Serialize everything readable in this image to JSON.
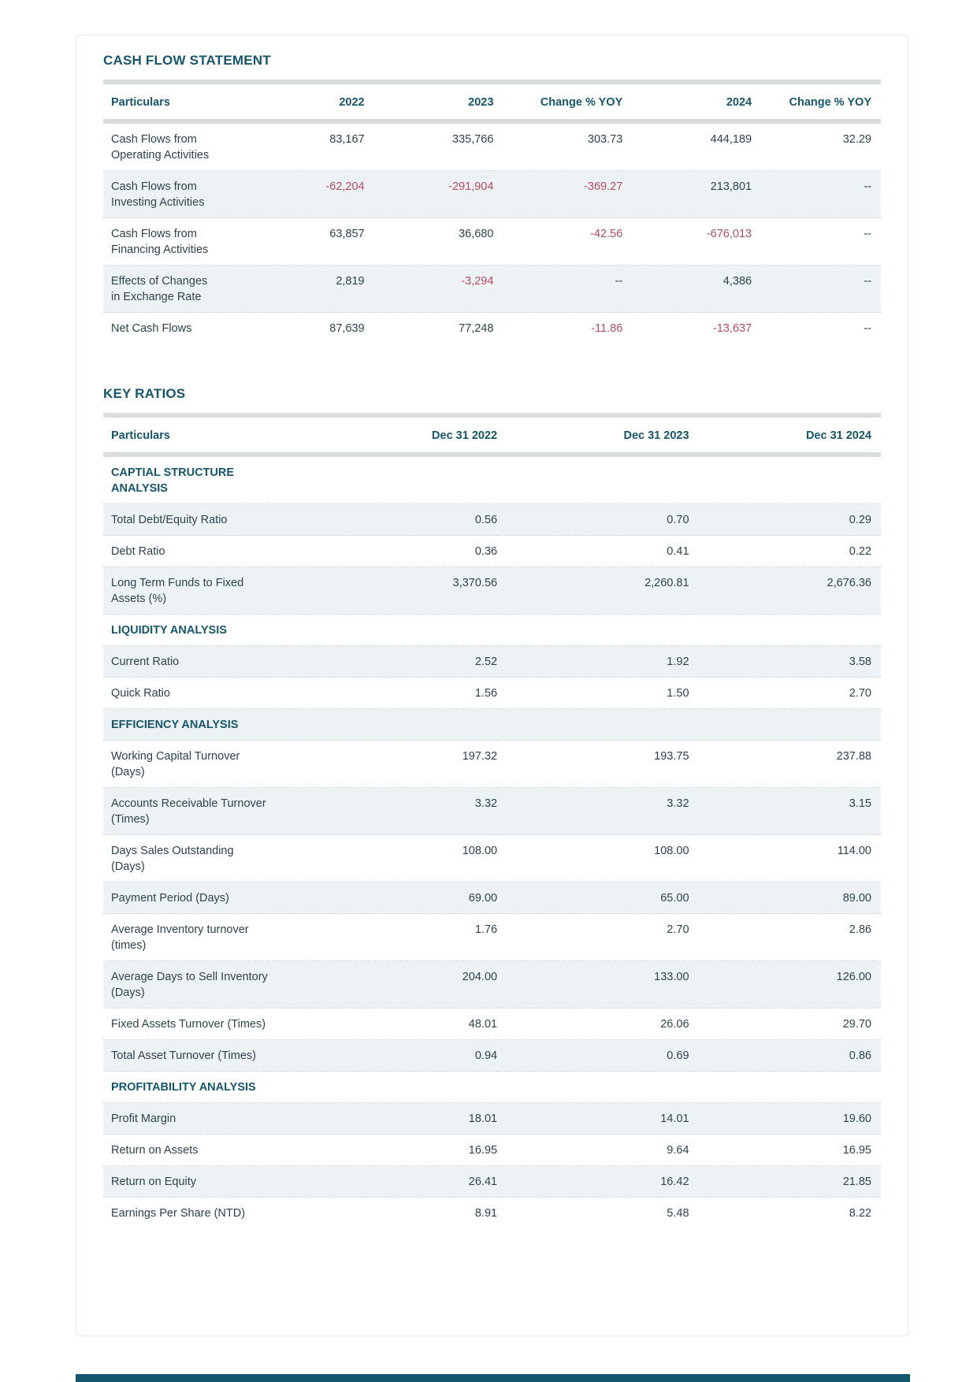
{
  "colors": {
    "accent": "#15566f",
    "text": "#2c434f",
    "negative": "#b64a5f",
    "row_shade": "#edf2f5",
    "header_bar": "#d9dddd"
  },
  "cash_flow_statement": {
    "title": "CASH FLOW STATEMENT",
    "columns": [
      "Particulars",
      "2022",
      "2023",
      "Change % YOY",
      "2024",
      "Change % YOY"
    ],
    "rows": [
      {
        "label": "Cash Flows from\nOperating Activities",
        "values": [
          "83,167",
          "335,766",
          "303.73",
          "444,189",
          "32.29"
        ]
      },
      {
        "label": "Cash Flows from\nInvesting Activities",
        "values": [
          "-62,204",
          "-291,904",
          "-369.27",
          "213,801",
          "--"
        ]
      },
      {
        "label": "Cash Flows from\nFinancing Activities",
        "values": [
          "63,857",
          "36,680",
          "-42.56",
          "-676,013",
          "--"
        ]
      },
      {
        "label": "Effects of Changes\nin Exchange Rate",
        "values": [
          "2,819",
          "-3,294",
          "--",
          "4,386",
          "--"
        ]
      },
      {
        "label": "Net Cash Flows",
        "values": [
          "87,639",
          "77,248",
          "-11.86",
          "-13,637",
          "--"
        ]
      }
    ]
  },
  "key_ratios": {
    "title": "KEY RATIOS",
    "columns": [
      "Particulars",
      "Dec 31 2022",
      "Dec 31 2023",
      "Dec 31 2024"
    ],
    "rows": [
      {
        "section": "CAPTIAL STRUCTURE\nANALYSIS"
      },
      {
        "label": "Total Debt/Equity Ratio",
        "values": [
          "0.56",
          "0.70",
          "0.29"
        ]
      },
      {
        "label": "Debt Ratio",
        "values": [
          "0.36",
          "0.41",
          "0.22"
        ]
      },
      {
        "label": "Long Term Funds to Fixed\nAssets (%)",
        "values": [
          "3,370.56",
          "2,260.81",
          "2,676.36"
        ]
      },
      {
        "section": "LIQUIDITY ANALYSIS"
      },
      {
        "label": "Current Ratio",
        "values": [
          "2.52",
          "1.92",
          "3.58"
        ]
      },
      {
        "label": "Quick Ratio",
        "values": [
          "1.56",
          "1.50",
          "2.70"
        ]
      },
      {
        "section": "EFFICIENCY ANALYSIS"
      },
      {
        "label": "Working Capital Turnover\n(Days)",
        "values": [
          "197.32",
          "193.75",
          "237.88"
        ]
      },
      {
        "label": "Accounts Receivable Turnover\n(Times)",
        "values": [
          "3.32",
          "3.32",
          "3.15"
        ]
      },
      {
        "label": "Days Sales Outstanding\n(Days)",
        "values": [
          "108.00",
          "108.00",
          "114.00"
        ]
      },
      {
        "label": "Payment Period (Days)",
        "values": [
          "69.00",
          "65.00",
          "89.00"
        ]
      },
      {
        "label": "Average Inventory turnover\n(times)",
        "values": [
          "1.76",
          "2.70",
          "2.86"
        ]
      },
      {
        "label": "Average Days to Sell Inventory\n(Days)",
        "values": [
          "204.00",
          "133.00",
          "126.00"
        ]
      },
      {
        "label": "Fixed Assets Turnover (Times)",
        "values": [
          "48.01",
          "26.06",
          "29.70"
        ]
      },
      {
        "label": "Total Asset Turnover (Times)",
        "values": [
          "0.94",
          "0.69",
          "0.86"
        ]
      },
      {
        "section": "PROFITABILITY ANALYSIS"
      },
      {
        "label": "Profit Margin",
        "values": [
          "18.01",
          "14.01",
          "19.60"
        ]
      },
      {
        "label": "Return on Assets",
        "values": [
          "16.95",
          "9.64",
          "16.95"
        ]
      },
      {
        "label": "Return on Equity",
        "values": [
          "26.41",
          "16.42",
          "21.85"
        ]
      },
      {
        "label": "Earnings Per Share (NTD)",
        "values": [
          "8.91",
          "5.48",
          "8.22"
        ]
      }
    ]
  }
}
